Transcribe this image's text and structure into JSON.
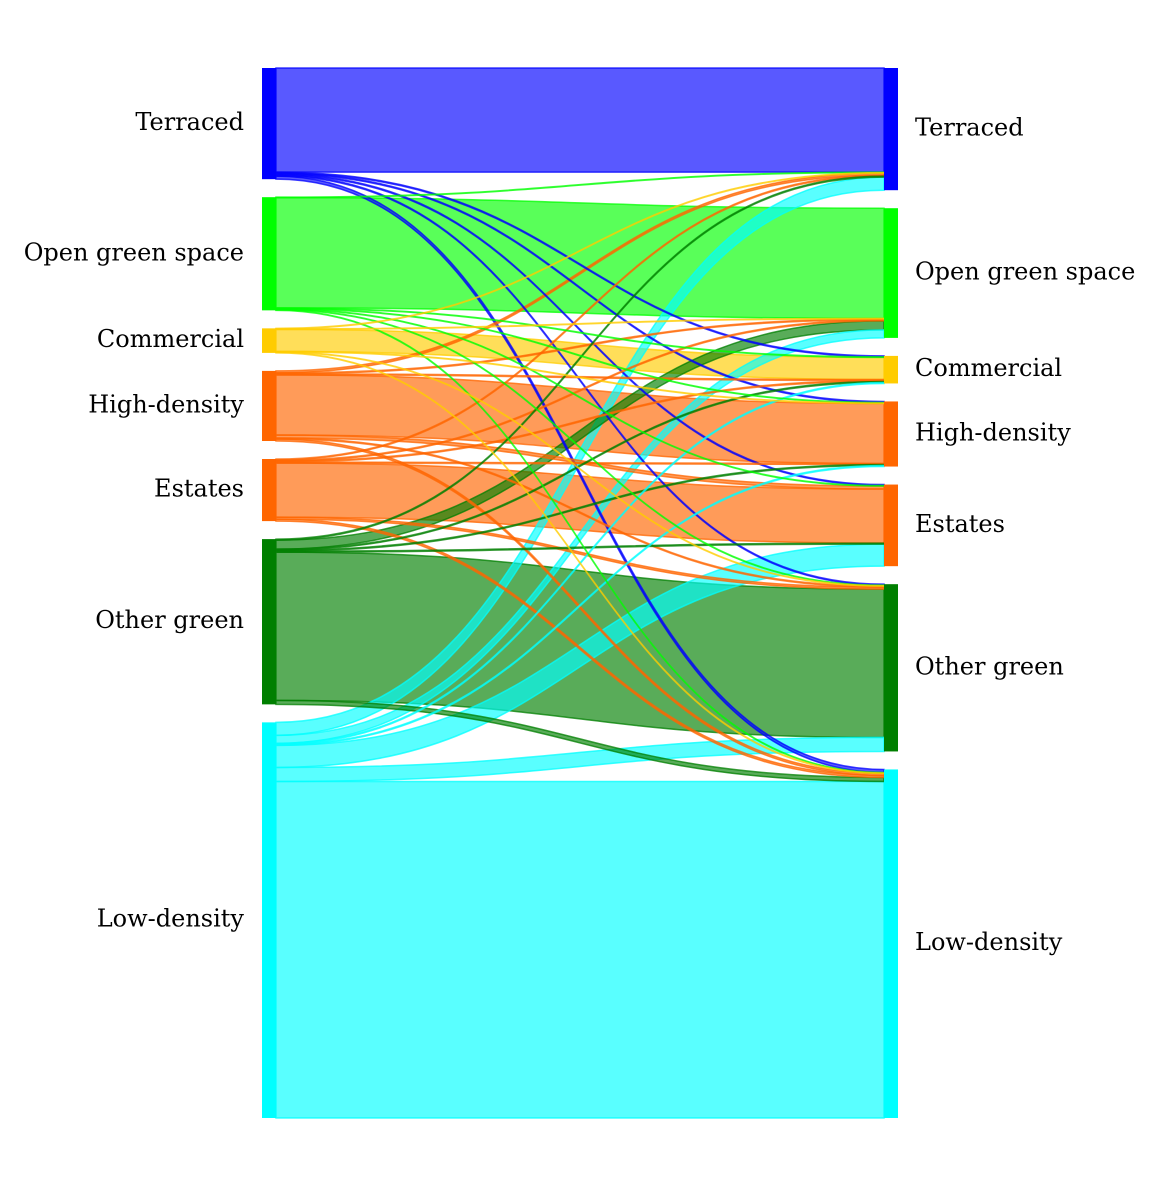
{
  "colors": {
    "Terraced": "#0000ff",
    "Open green space": "#00ff00",
    "Commercial": "#ffcc00",
    "High-density": "#ff6600",
    "Estates": "#ff6600",
    "Other green": "#007f00",
    "Low-density": "#00ffff"
  },
  "left_nodes": [
    {
      "name": "Terraced",
      "label": "Terraced"
    },
    {
      "name": "Open green space",
      "label": "Open green space"
    },
    {
      "name": "Commercial",
      "label": "Commercial"
    },
    {
      "name": "High-density",
      "label": "High-density"
    },
    {
      "name": "Estates",
      "label": "Estates"
    },
    {
      "name": "Other green",
      "label": "Other green"
    },
    {
      "name": "Low-density",
      "label": "Low-density"
    }
  ],
  "right_nodes": [
    {
      "name": "Terraced",
      "label": "Terraced"
    },
    {
      "name": "Open green space",
      "label": "Open green space"
    },
    {
      "name": "Commercial",
      "label": "Commercial"
    },
    {
      "name": "High-density",
      "label": "High-density"
    },
    {
      "name": "Estates",
      "label": "Estates"
    },
    {
      "name": "Other green",
      "label": "Other green"
    },
    {
      "name": "Low-density",
      "label": "Low-density"
    }
  ],
  "flows": [
    {
      "source": "Terraced",
      "target": "Terraced",
      "value": 104
    },
    {
      "source": "Terraced",
      "target": "Commercial",
      "value": 1
    },
    {
      "source": "Terraced",
      "target": "High-density",
      "value": 1
    },
    {
      "source": "Terraced",
      "target": "Estates",
      "value": 1
    },
    {
      "source": "Terraced",
      "target": "Other green",
      "value": 1
    },
    {
      "source": "Terraced",
      "target": "Low-density",
      "value": 3
    },
    {
      "source": "Open green space",
      "target": "Open green space",
      "value": 110
    },
    {
      "source": "Open green space",
      "target": "Terraced",
      "value": 0.5
    },
    {
      "source": "Open green space",
      "target": "Commercial",
      "value": 0.5
    },
    {
      "source": "Open green space",
      "target": "High-density",
      "value": 0.5
    },
    {
      "source": "Open green space",
      "target": "Estates",
      "value": 0.5
    },
    {
      "source": "Open green space",
      "target": "Other green",
      "value": 0.5
    },
    {
      "source": "Open green space",
      "target": "Low-density",
      "value": 0.5
    },
    {
      "source": "Commercial",
      "target": "Commercial",
      "value": 22
    },
    {
      "source": "Commercial",
      "target": "Terraced",
      "value": 0.5
    },
    {
      "source": "Commercial",
      "target": "Open green space",
      "value": 0.5
    },
    {
      "source": "Commercial",
      "target": "High-density",
      "value": 0.5
    },
    {
      "source": "Commercial",
      "target": "Other green",
      "value": 0.5
    },
    {
      "source": "Commercial",
      "target": "Low-density",
      "value": 0.5
    },
    {
      "source": "High-density",
      "target": "High-density",
      "value": 60
    },
    {
      "source": "High-density",
      "target": "Terraced",
      "value": 2
    },
    {
      "source": "High-density",
      "target": "Open green space",
      "value": 1
    },
    {
      "source": "High-density",
      "target": "Commercial",
      "value": 1
    },
    {
      "source": "High-density",
      "target": "Estates",
      "value": 3
    },
    {
      "source": "High-density",
      "target": "Other green",
      "value": 1
    },
    {
      "source": "High-density",
      "target": "Low-density",
      "value": 2
    },
    {
      "source": "Estates",
      "target": "Estates",
      "value": 54
    },
    {
      "source": "Estates",
      "target": "Terraced",
      "value": 1
    },
    {
      "source": "Estates",
      "target": "Open green space",
      "value": 1
    },
    {
      "source": "Estates",
      "target": "Commercial",
      "value": 1
    },
    {
      "source": "Estates",
      "target": "High-density",
      "value": 1
    },
    {
      "source": "Estates",
      "target": "Other green",
      "value": 2
    },
    {
      "source": "Estates",
      "target": "Low-density",
      "value": 2
    },
    {
      "source": "Other green",
      "target": "Other green",
      "value": 148
    },
    {
      "source": "Other green",
      "target": "Terraced",
      "value": 1
    },
    {
      "source": "Other green",
      "target": "Open green space",
      "value": 9
    },
    {
      "source": "Other green",
      "target": "Commercial",
      "value": 1
    },
    {
      "source": "Other green",
      "target": "High-density",
      "value": 1
    },
    {
      "source": "Other green",
      "target": "Estates",
      "value": 1
    },
    {
      "source": "Other green",
      "target": "Low-density",
      "value": 4
    },
    {
      "source": "Low-density",
      "target": "Low-density",
      "value": 336
    },
    {
      "source": "Low-density",
      "target": "Terraced",
      "value": 13
    },
    {
      "source": "Low-density",
      "target": "Open green space",
      "value": 8
    },
    {
      "source": "Low-density",
      "target": "Commercial",
      "value": 1
    },
    {
      "source": "Low-density",
      "target": "High-density",
      "value": 1
    },
    {
      "source": "Low-density",
      "target": "Estates",
      "value": 22
    },
    {
      "source": "Low-density",
      "target": "Other green",
      "value": 14
    }
  ]
}
